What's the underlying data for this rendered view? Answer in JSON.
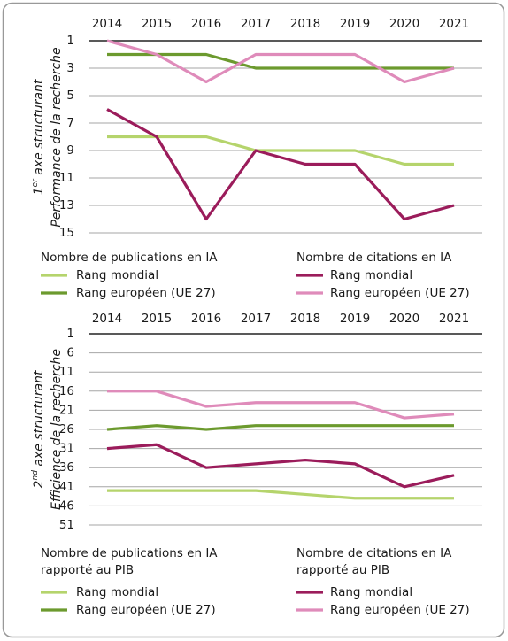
{
  "chart_data": [
    {
      "type": "line",
      "y_label": {
        "lines": [
          {
            "main": "1",
            "sup": "er",
            "rest": " axe structurant"
          },
          {
            "main": "Performance de la recherche"
          }
        ]
      },
      "categories": [
        "2014",
        "2015",
        "2016",
        "2017",
        "2018",
        "2019",
        "2020",
        "2021"
      ],
      "ylim": [
        1,
        15
      ],
      "y_inverted": true,
      "yticks": [
        1,
        3,
        5,
        7,
        9,
        11,
        13,
        15
      ],
      "grid": true,
      "groups": [
        {
          "title": [
            "Nombre de publications en IA"
          ],
          "series": [
            {
              "name": "Rang mondial",
              "color": "#b5d46c",
              "values": [
                8,
                8,
                8,
                9,
                9,
                9,
                10,
                10
              ]
            },
            {
              "name": "Rang européen (UE 27)",
              "color": "#6c9a2e",
              "values": [
                2,
                2,
                2,
                3,
                3,
                3,
                3,
                3
              ]
            }
          ]
        },
        {
          "title": [
            "Nombre de citations en IA"
          ],
          "series": [
            {
              "name": "Rang mondial",
              "color": "#9b1c5b",
              "values": [
                6,
                8,
                14,
                9,
                10,
                10,
                14,
                13
              ]
            },
            {
              "name": "Rang européen (UE 27)",
              "color": "#df8bba",
              "values": [
                1,
                2,
                4,
                2,
                2,
                2,
                4,
                3
              ]
            }
          ]
        }
      ]
    },
    {
      "type": "line",
      "y_label": {
        "lines": [
          {
            "main": "2",
            "sup": "nd",
            "rest": " axe structurant"
          },
          {
            "main": "Efficience de la recherche"
          }
        ]
      },
      "categories": [
        "2014",
        "2015",
        "2016",
        "2017",
        "2018",
        "2019",
        "2020",
        "2021"
      ],
      "ylim": [
        1,
        51
      ],
      "y_inverted": true,
      "yticks": [
        1,
        6,
        11,
        16,
        21,
        26,
        31,
        36,
        41,
        46,
        51
      ],
      "grid": true,
      "groups": [
        {
          "title": [
            "Nombre de publications en IA",
            "rapporté au PIB"
          ],
          "series": [
            {
              "name": "Rang mondial",
              "color": "#b5d46c",
              "values": [
                42,
                42,
                42,
                42,
                43,
                44,
                44,
                44
              ]
            },
            {
              "name": "Rang européen (UE 27)",
              "color": "#6c9a2e",
              "values": [
                26,
                25,
                26,
                25,
                25,
                25,
                25,
                25
              ]
            }
          ]
        },
        {
          "title": [
            "Nombre de citations en IA",
            "rapporté au PIB"
          ],
          "series": [
            {
              "name": "Rang mondial",
              "color": "#9b1c5b",
              "values": [
                31,
                30,
                36,
                35,
                34,
                35,
                41,
                38
              ]
            },
            {
              "name": "Rang européen (UE 27)",
              "color": "#df8bba",
              "values": [
                16,
                16,
                20,
                19,
                19,
                19,
                23,
                22
              ]
            }
          ]
        }
      ]
    }
  ]
}
